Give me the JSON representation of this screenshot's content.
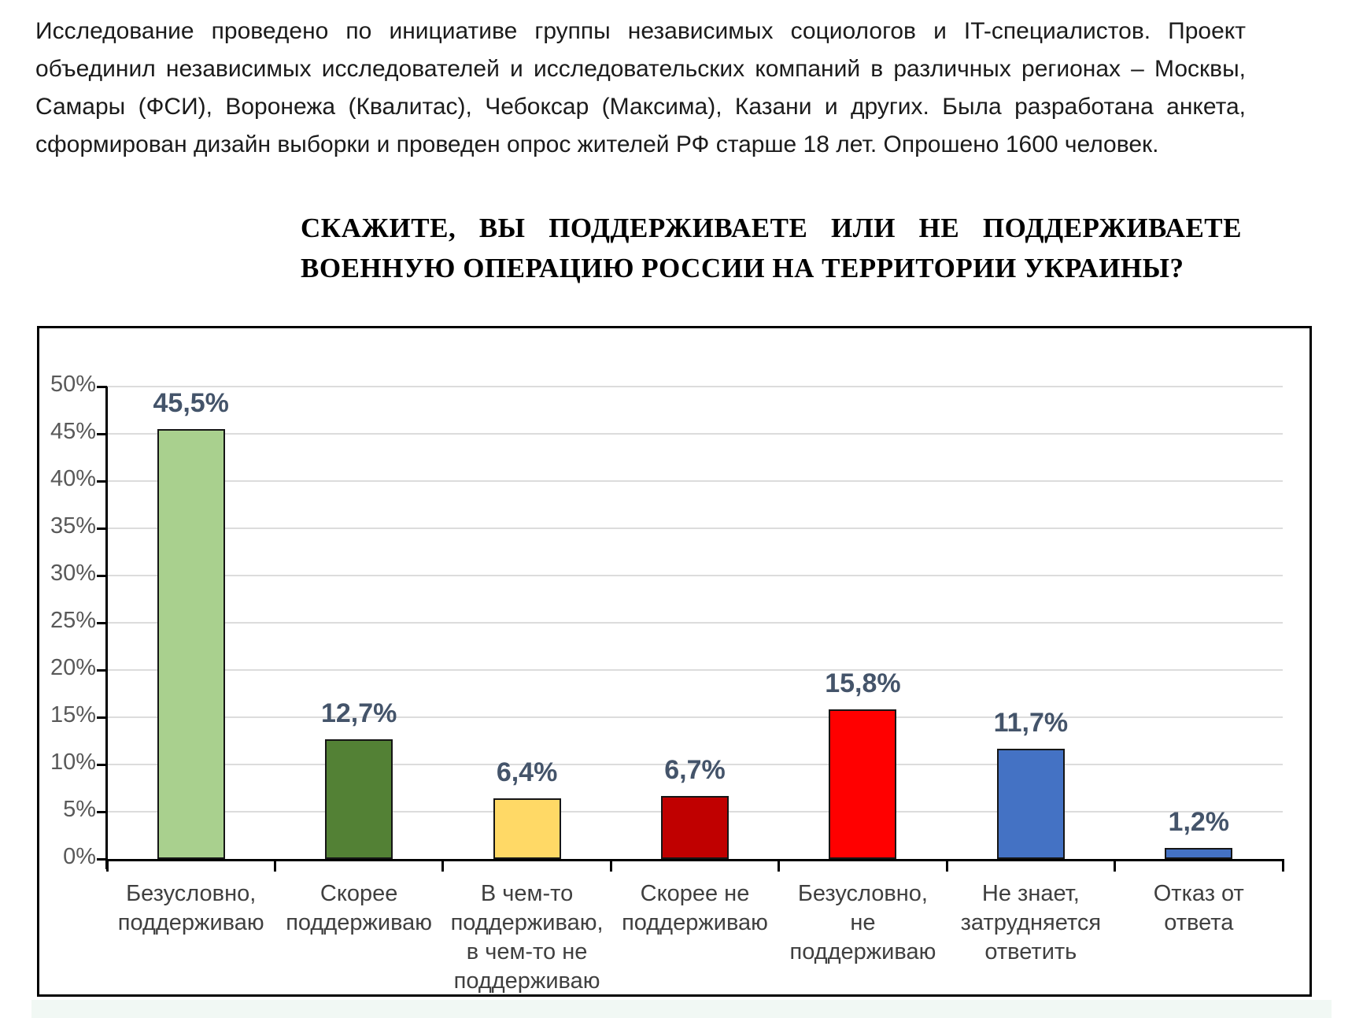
{
  "intro_text": "Исследование проведено по инициативе группы независимых социологов и IT-специалистов. Проект объединил независимых исследователей и исследовательских компаний в различных регионах – Москвы, Самары (ФСИ), Воронежа (Квалитас), Чебоксар (Максима), Казани и других. Была разработана анкета, сформирован дизайн выборки и проведен опрос жителей РФ старше 18 лет. Опрошено 1600 человек.",
  "question_title": "СКАЖИТЕ, ВЫ ПОДДЕРЖИВАЕТЕ ИЛИ НЕ ПОДДЕРЖИВАЕТЕ ВОЕННУЮ ОПЕРАЦИЮ РОССИИ НА ТЕРРИТОРИИ УКРАИНЫ?",
  "chart_data": {
    "type": "bar",
    "title": "",
    "xlabel": "",
    "ylabel": "",
    "categories": [
      "Безусловно,\nподдерживаю",
      "Скорее\nподдерживаю",
      "В чем-то\nподдерживаю,\nв чем-то не\nподдерживаю",
      "Скорее не\nподдерживаю",
      "Безусловно,\nне\nподдерживаю",
      "Не знает,\nзатрудняется\nответить",
      "Отказ от\nответа"
    ],
    "values": [
      45.5,
      12.7,
      6.4,
      6.7,
      15.8,
      11.7,
      1.2
    ],
    "value_labels": [
      "45,5%",
      "12,7%",
      "6,4%",
      "6,7%",
      "15,8%",
      "11,7%",
      "1,2%"
    ],
    "bar_colors": [
      "#A9D08E",
      "#538135",
      "#FFD966",
      "#C00000",
      "#FF0000",
      "#4472C4",
      "#4472C4"
    ],
    "ylim": [
      0,
      50
    ],
    "ytick_step": 5,
    "ytick_labels": [
      "0%",
      "5%",
      "10%",
      "15%",
      "20%",
      "25%",
      "30%",
      "35%",
      "40%",
      "45%",
      "50%"
    ],
    "grid": true,
    "legend_position": "none"
  },
  "colors": {
    "data_label": "#44546A",
    "axis_tick_label": "#595959",
    "category_label": "#3f3f3f",
    "gridline": "#dcdcdc",
    "axis_line": "#000000",
    "bar_border": "#161616",
    "chart_border": "#000000",
    "page_background": "#ffffff",
    "footer_strip": "#f1f8f4"
  }
}
